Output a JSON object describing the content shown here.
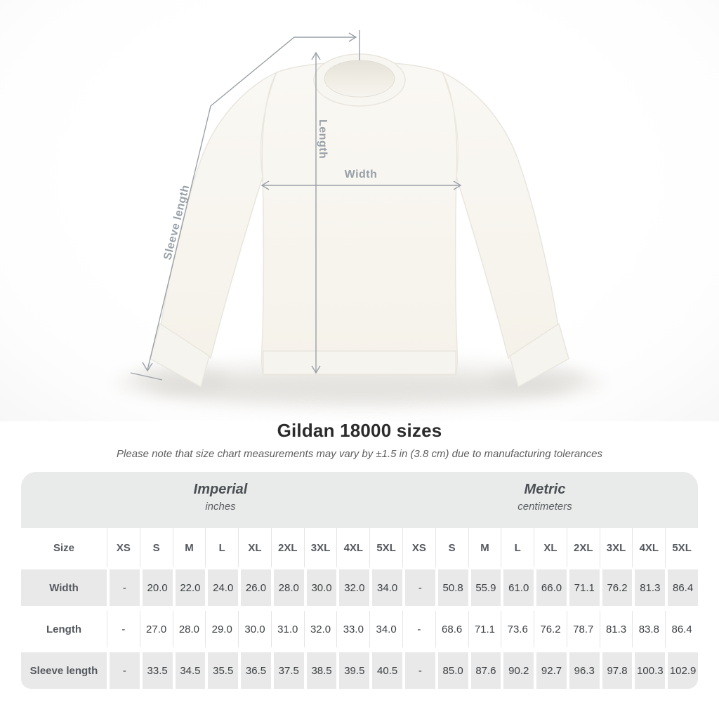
{
  "product_diagram": {
    "measure_labels": {
      "length": "Length",
      "width": "Width",
      "sleeve_length": "Sleeve length"
    }
  },
  "heading": {
    "title": "Gildan 18000 sizes",
    "note": "Please note that size chart measurements may vary by ±1.5 in (3.8 cm) due to manufacturing tolerances"
  },
  "size_chart": {
    "unit_groups": [
      {
        "label": "Imperial",
        "sublabel": "inches"
      },
      {
        "label": "Metric",
        "sublabel": "centimeters"
      }
    ],
    "size_header": "Size",
    "sizes": [
      "XS",
      "S",
      "M",
      "L",
      "XL",
      "2XL",
      "3XL",
      "4XL",
      "5XL"
    ],
    "rows": [
      {
        "label": "Width",
        "imperial": [
          "-",
          "20.0",
          "22.0",
          "24.0",
          "26.0",
          "28.0",
          "30.0",
          "32.0",
          "34.0"
        ],
        "metric": [
          "-",
          "50.8",
          "55.9",
          "61.0",
          "66.0",
          "71.1",
          "76.2",
          "81.3",
          "86.4"
        ]
      },
      {
        "label": "Length",
        "imperial": [
          "-",
          "27.0",
          "28.0",
          "29.0",
          "30.0",
          "31.0",
          "32.0",
          "33.0",
          "34.0"
        ],
        "metric": [
          "-",
          "68.6",
          "71.1",
          "73.6",
          "76.2",
          "78.7",
          "81.3",
          "83.8",
          "86.4"
        ]
      },
      {
        "label": "Sleeve length",
        "imperial": [
          "-",
          "33.5",
          "34.5",
          "35.5",
          "36.5",
          "37.5",
          "38.5",
          "39.5",
          "40.5"
        ],
        "metric": [
          "-",
          "85.0",
          "87.6",
          "90.2",
          "92.7",
          "96.3",
          "97.8",
          "100.3",
          "102.9"
        ]
      }
    ]
  },
  "colors": {
    "annotation": "#9aa1a8",
    "garment": "#f8f6f1",
    "card_header_gray": "#e9eaea",
    "row_stripe_gray": "#e9e9e9",
    "title_text": "#2b2b2b",
    "note_text": "#5e5e5e",
    "table_text": "#3c4043",
    "table_header_text": "#54595f"
  }
}
